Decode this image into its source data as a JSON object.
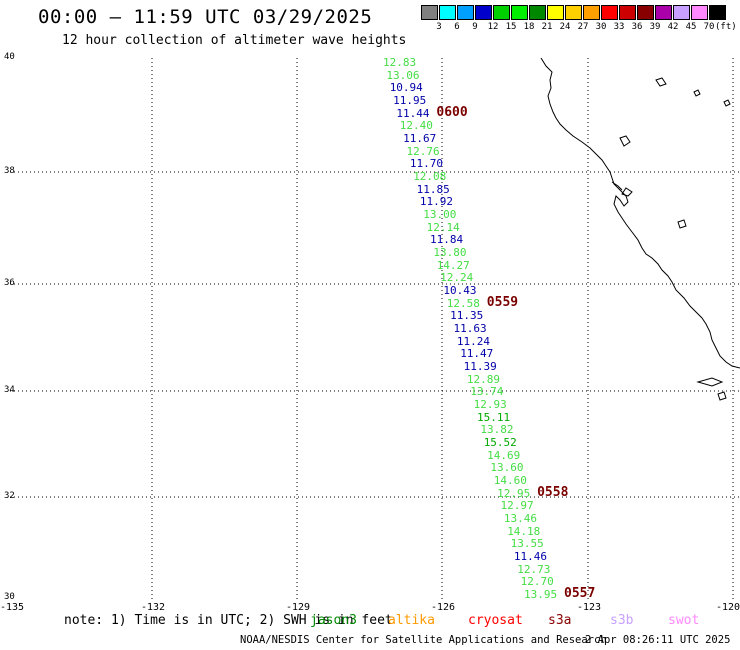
{
  "title": "00:00 – 11:59 UTC 03/29/2025",
  "subtitle": "12 hour collection of altimeter wave heights",
  "legend": {
    "unit": "(ft)",
    "bins": [
      {
        "label": "3",
        "color": "#808080"
      },
      {
        "label": "6",
        "color": "#00ffff"
      },
      {
        "label": "9",
        "color": "#00a0ff"
      },
      {
        "label": "12",
        "color": "#0000cc"
      },
      {
        "label": "15",
        "color": "#00d000"
      },
      {
        "label": "18",
        "color": "#00ee00"
      },
      {
        "label": "21",
        "color": "#008800"
      },
      {
        "label": "24",
        "color": "#ffff00"
      },
      {
        "label": "27",
        "color": "#ffd000"
      },
      {
        "label": "30",
        "color": "#ffa000"
      },
      {
        "label": "33",
        "color": "#ff0000"
      },
      {
        "label": "36",
        "color": "#cc0000"
      },
      {
        "label": "39",
        "color": "#880000"
      },
      {
        "label": "42",
        "color": "#aa00aa"
      },
      {
        "label": "45",
        "color": "#c8a0ff"
      },
      {
        "label": "70",
        "color": "#ff88ff"
      },
      {
        "label": "",
        "color": "#000000"
      }
    ]
  },
  "axes": {
    "lat_labels": [
      "40",
      "38",
      "36",
      "34",
      "32",
      "30"
    ],
    "lon_labels": [
      "-135",
      "-132",
      "-129",
      "-126",
      "-123",
      "-120"
    ]
  },
  "wave_heights": [
    {
      "v": "12.83",
      "c": "#44dd44"
    },
    {
      "v": "13.06",
      "c": "#44dd44"
    },
    {
      "v": "10.94",
      "c": "#0000aa"
    },
    {
      "v": "11.95",
      "c": "#0000aa"
    },
    {
      "v": "11.44",
      "c": "#0000aa"
    },
    {
      "v": "12.40",
      "c": "#44dd44"
    },
    {
      "v": "11.67",
      "c": "#0000aa"
    },
    {
      "v": "12.76",
      "c": "#44dd44"
    },
    {
      "v": "11.70",
      "c": "#0000aa"
    },
    {
      "v": "12.08",
      "c": "#44dd44"
    },
    {
      "v": "11.85",
      "c": "#0000aa"
    },
    {
      "v": "11.92",
      "c": "#0000aa"
    },
    {
      "v": "13.00",
      "c": "#44dd44"
    },
    {
      "v": "12.14",
      "c": "#44dd44"
    },
    {
      "v": "11.84",
      "c": "#0000aa"
    },
    {
      "v": "13.80",
      "c": "#44dd44"
    },
    {
      "v": "14.27",
      "c": "#44dd44"
    },
    {
      "v": "12.24",
      "c": "#44dd44"
    },
    {
      "v": "10.43",
      "c": "#0000aa"
    },
    {
      "v": "12.58",
      "c": "#44dd44"
    },
    {
      "v": "11.35",
      "c": "#0000aa"
    },
    {
      "v": "11.63",
      "c": "#0000aa"
    },
    {
      "v": "11.24",
      "c": "#0000aa"
    },
    {
      "v": "11.47",
      "c": "#0000aa"
    },
    {
      "v": "11.39",
      "c": "#0000aa"
    },
    {
      "v": "12.89",
      "c": "#44dd44"
    },
    {
      "v": "13.74",
      "c": "#44dd44"
    },
    {
      "v": "12.93",
      "c": "#44dd44"
    },
    {
      "v": "15.11",
      "c": "#00aa00"
    },
    {
      "v": "13.82",
      "c": "#44dd44"
    },
    {
      "v": "15.52",
      "c": "#00aa00"
    },
    {
      "v": "14.69",
      "c": "#44dd44"
    },
    {
      "v": "13.60",
      "c": "#44dd44"
    },
    {
      "v": "14.60",
      "c": "#44dd44"
    },
    {
      "v": "12.95",
      "c": "#44dd44"
    },
    {
      "v": "12.97",
      "c": "#44dd44"
    },
    {
      "v": "13.46",
      "c": "#44dd44"
    },
    {
      "v": "14.18",
      "c": "#44dd44"
    },
    {
      "v": "13.55",
      "c": "#44dd44"
    },
    {
      "v": "11.46",
      "c": "#0000aa"
    },
    {
      "v": "12.73",
      "c": "#44dd44"
    },
    {
      "v": "12.70",
      "c": "#44dd44"
    },
    {
      "v": "13.95",
      "c": "#44dd44"
    }
  ],
  "time_marks": [
    {
      "label": "0600",
      "row": 4
    },
    {
      "label": "0559",
      "row": 19
    },
    {
      "label": "0558",
      "row": 34
    },
    {
      "label": "0557",
      "row": 42
    }
  ],
  "note": "note: 1) Time is in UTC; 2) SWH is in feet",
  "satellites": [
    {
      "name": "jason3",
      "color": "#008800"
    },
    {
      "name": "altika",
      "color": "#ff9900"
    },
    {
      "name": "cryosat",
      "color": "#ff0000"
    },
    {
      "name": "s3a",
      "color": "#880000"
    },
    {
      "name": "s3b",
      "color": "#c8a0ff"
    },
    {
      "name": "swot",
      "color": "#ff88ff"
    }
  ],
  "footer": "NOAA/NESDIS Center for Satellite Applications and Research",
  "generated": "2 Apr 08:26:11 UTC 2025"
}
